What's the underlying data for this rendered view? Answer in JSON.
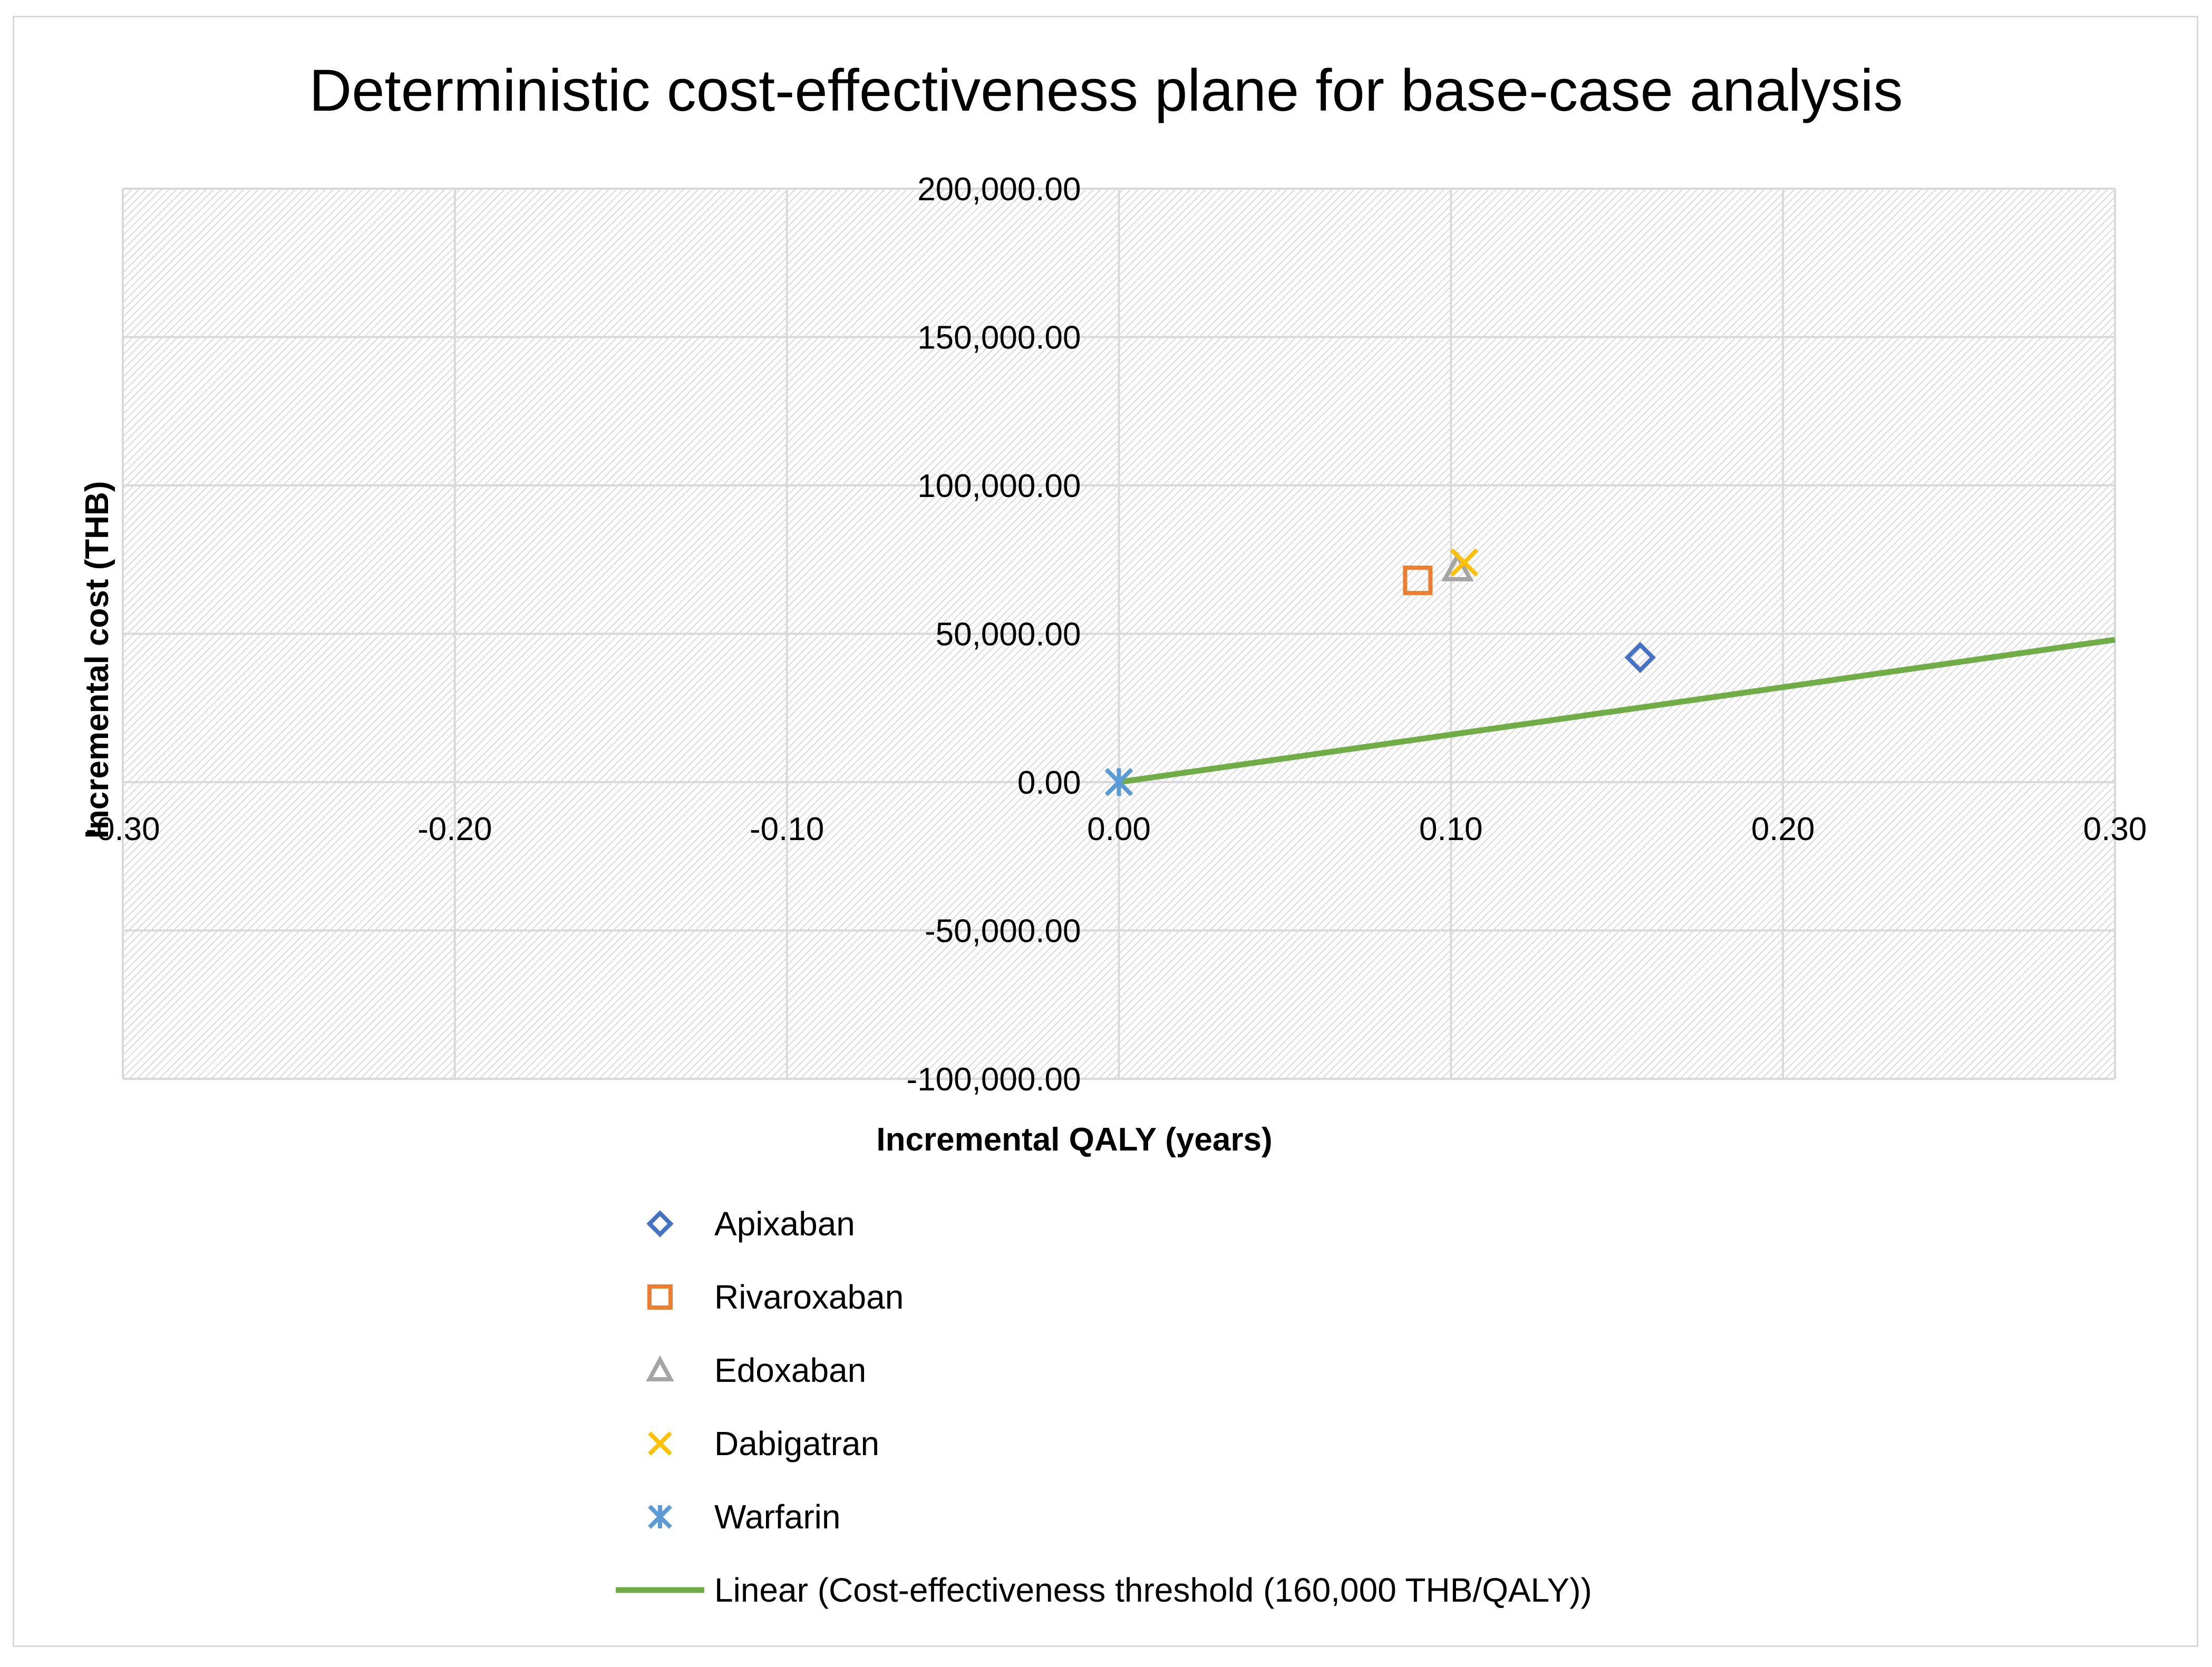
{
  "chart_data": {
    "type": "scatter",
    "title": "Deterministic cost-effectiveness plane for base-case analysis",
    "xlabel": "Incremental QALY (years)",
    "ylabel": "Incremental cost (THB)",
    "xlim": [
      -0.3,
      0.3
    ],
    "ylim": [
      -100000,
      200000
    ],
    "x_ticks": [
      -0.3,
      -0.2,
      -0.1,
      0.0,
      0.1,
      0.2,
      0.3
    ],
    "x_tick_labels": [
      "-0.30",
      "-0.20",
      "-0.10",
      "0.00",
      "0.10",
      "0.20",
      "0.30"
    ],
    "y_ticks": [
      -100000,
      -50000,
      0,
      50000,
      100000,
      150000,
      200000
    ],
    "y_tick_labels": [
      "-100,000.00",
      "-50,000.00",
      "0.00",
      "50,000.00",
      "100,000.00",
      "150,000.00",
      "200,000.00"
    ],
    "grid": true,
    "legend_position": "bottom",
    "series": [
      {
        "name": "Apixaban",
        "marker": "diamond",
        "color": "#4472c4",
        "x": [
          0.157
        ],
        "y": [
          42000
        ]
      },
      {
        "name": "Rivaroxaban",
        "marker": "square",
        "color": "#ed7d31",
        "x": [
          0.09
        ],
        "y": [
          68000
        ]
      },
      {
        "name": "Edoxaban",
        "marker": "triangle",
        "color": "#a5a5a5",
        "x": [
          0.102
        ],
        "y": [
          72000
        ]
      },
      {
        "name": "Dabigatran",
        "marker": "x",
        "color": "#ffc000",
        "x": [
          0.104
        ],
        "y": [
          74000
        ]
      },
      {
        "name": "Warfarin",
        "marker": "star",
        "color": "#5b9bd5",
        "x": [
          0.0
        ],
        "y": [
          0
        ]
      }
    ],
    "threshold_line": {
      "name": "Linear (Cost-effectiveness threshold (160,000 THB/QALY))",
      "color": "#70ad47",
      "x": [
        0.0,
        0.3
      ],
      "y": [
        0,
        48000
      ]
    }
  }
}
